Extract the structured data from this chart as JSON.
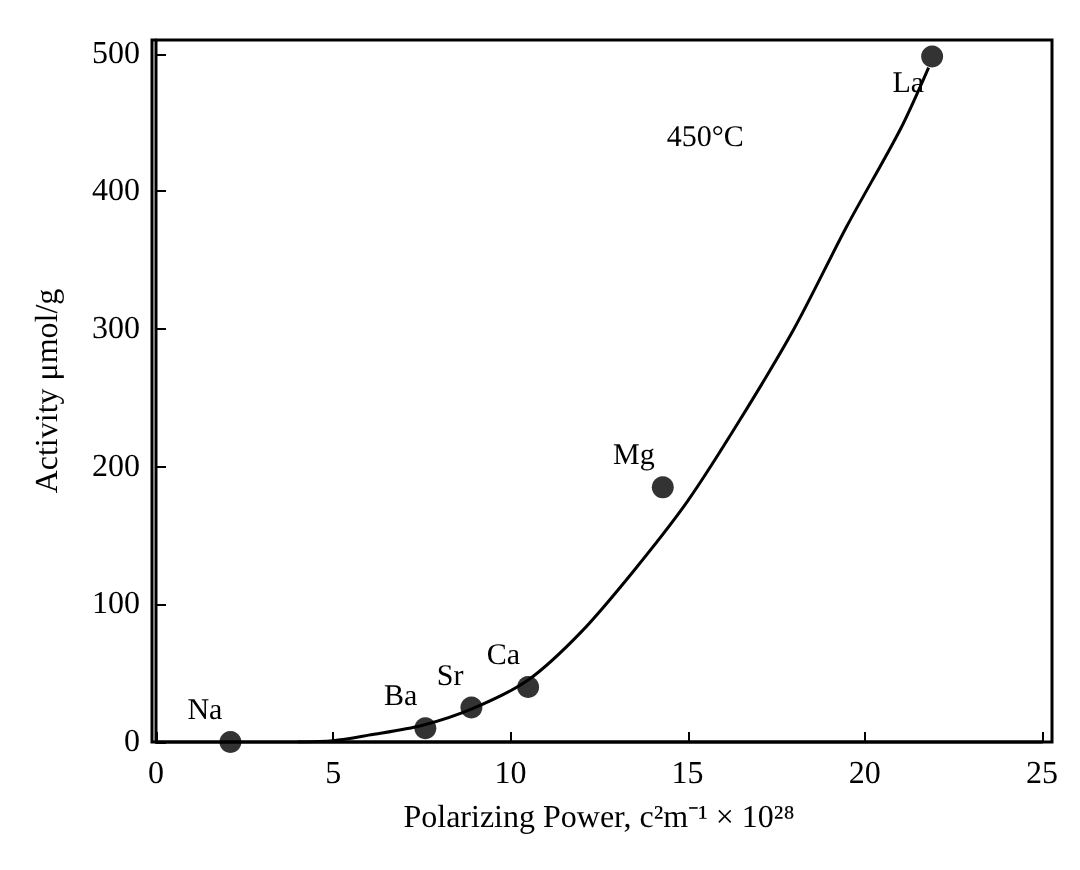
{
  "chart_data": {
    "type": "scatter",
    "xlabel": "Polarizing Power, c²m⁻¹ × 10²⁸",
    "ylabel": "Activity μmol/g",
    "xlim": [
      0,
      25
    ],
    "xticks": [
      0,
      5,
      10,
      15,
      20,
      25
    ],
    "ylim": [
      0,
      510
    ],
    "yticks": [
      0,
      100,
      200,
      300,
      400,
      500
    ],
    "grid": false,
    "marker": "circle",
    "series": [
      {
        "color": "#000000",
        "x": [
          2.1,
          7.6,
          8.9,
          10.5,
          14.3,
          21.9
        ],
        "values": [
          0,
          10,
          25,
          40,
          185,
          498
        ]
      },
      {
        "type": "line",
        "color": "#000000",
        "marker": "none",
        "line_style": "solid",
        "x": [
          4,
          5,
          6,
          7.5,
          9,
          10.5,
          12,
          13.5,
          15,
          16.5,
          18,
          19.5,
          21,
          21.8
        ],
        "values": [
          0,
          1,
          5,
          12,
          25,
          45,
          80,
          125,
          175,
          235,
          300,
          375,
          445,
          490
        ]
      }
    ],
    "annotations": [
      {
        "text": "Na",
        "x": 2.1,
        "y": 0
      },
      {
        "text": "Ba",
        "x": 7.6,
        "y": 10
      },
      {
        "text": "Sr",
        "x": 8.9,
        "y": 25
      },
      {
        "text": "Ca",
        "x": 10.5,
        "y": 40
      },
      {
        "text": "Mg",
        "x": 14.3,
        "y": 185
      },
      {
        "text": "La",
        "x": 21.9,
        "y": 498
      },
      "450°C"
    ]
  }
}
